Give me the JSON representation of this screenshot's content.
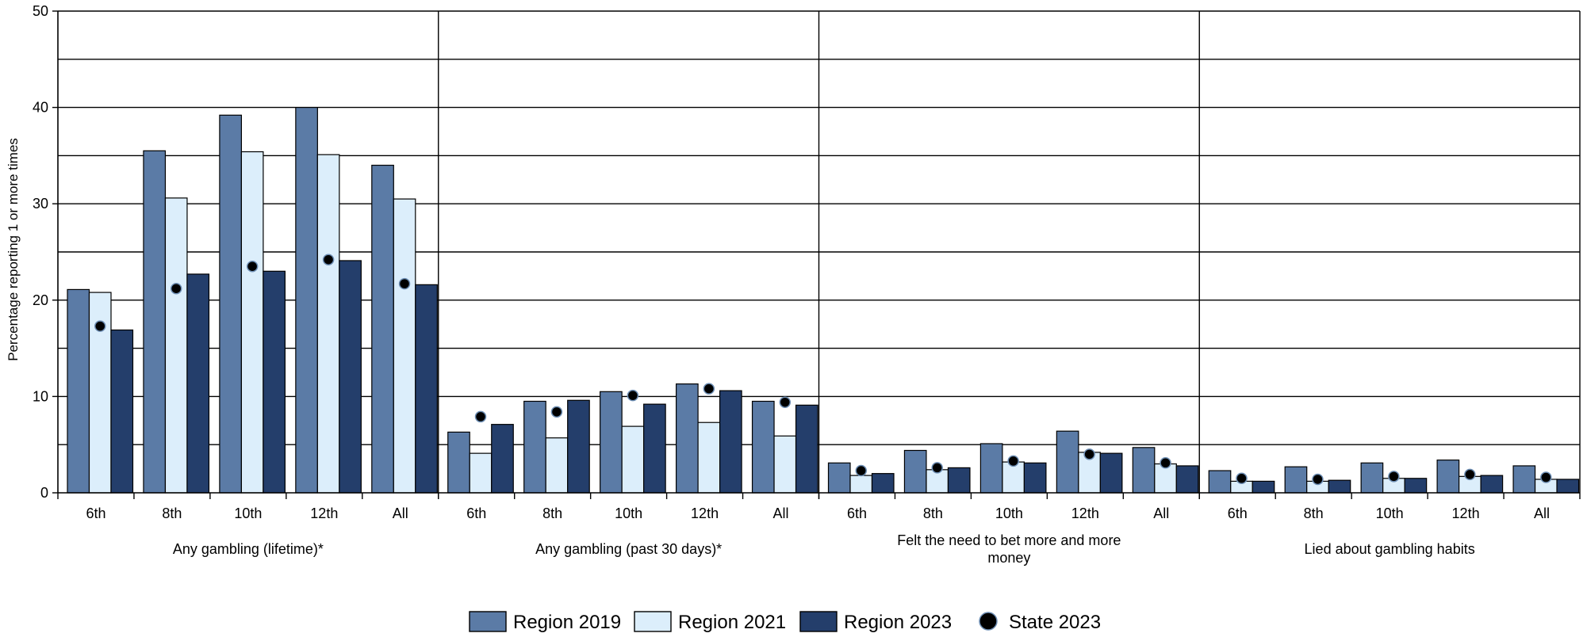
{
  "chart_data": {
    "type": "bar",
    "title": "",
    "ylabel": "Percentage reporting 1 or more times",
    "xlabel": "",
    "ylim": [
      0,
      50
    ],
    "yticks": [
      0,
      10,
      20,
      30,
      40,
      50
    ],
    "gridlines": [
      5,
      10,
      15,
      20,
      25,
      30,
      35,
      40,
      45,
      50
    ],
    "grid": true,
    "legend_position": "bottom",
    "groups": [
      {
        "name": "Any gambling (lifetime)*",
        "categories": [
          "6th",
          "8th",
          "10th",
          "12th",
          "All"
        ],
        "series": [
          {
            "name": "Region 2019",
            "values": [
              21.1,
              35.5,
              39.2,
              40.0,
              34.0
            ]
          },
          {
            "name": "Region 2021",
            "values": [
              20.8,
              30.6,
              35.4,
              35.1,
              30.5
            ]
          },
          {
            "name": "Region 2023",
            "values": [
              16.9,
              22.7,
              23.0,
              24.1,
              21.6
            ]
          }
        ],
        "state": [
          17.3,
          21.2,
          23.5,
          24.2,
          21.7
        ]
      },
      {
        "name": "Any gambling (past 30 days)*",
        "categories": [
          "6th",
          "8th",
          "10th",
          "12th",
          "All"
        ],
        "series": [
          {
            "name": "Region 2019",
            "values": [
              6.3,
              9.5,
              10.5,
              11.3,
              9.5
            ]
          },
          {
            "name": "Region 2021",
            "values": [
              4.1,
              5.7,
              6.9,
              7.3,
              5.9
            ]
          },
          {
            "name": "Region 2023",
            "values": [
              7.1,
              9.6,
              9.2,
              10.6,
              9.1
            ]
          }
        ],
        "state": [
          7.9,
          8.4,
          10.1,
          10.8,
          9.4
        ]
      },
      {
        "name": "Felt the need to bet more and more money",
        "name_lines": [
          "Felt the need to bet more and more",
          "money"
        ],
        "categories": [
          "6th",
          "8th",
          "10th",
          "12th",
          "All"
        ],
        "series": [
          {
            "name": "Region 2019",
            "values": [
              3.1,
              4.4,
              5.1,
              6.4,
              4.7
            ]
          },
          {
            "name": "Region 2021",
            "values": [
              1.8,
              2.4,
              3.2,
              4.2,
              3.0
            ]
          },
          {
            "name": "Region 2023",
            "values": [
              2.0,
              2.6,
              3.1,
              4.1,
              2.8
            ]
          }
        ],
        "state": [
          2.3,
          2.6,
          3.3,
          4.0,
          3.1
        ]
      },
      {
        "name": "Lied about gambling habits",
        "categories": [
          "6th",
          "8th",
          "10th",
          "12th",
          "All"
        ],
        "series": [
          {
            "name": "Region 2019",
            "values": [
              2.3,
              2.7,
              3.1,
              3.4,
              2.8
            ]
          },
          {
            "name": "Region 2021",
            "values": [
              1.2,
              1.2,
              1.5,
              1.7,
              1.4
            ]
          },
          {
            "name": "Region 2023",
            "values": [
              1.2,
              1.3,
              1.5,
              1.8,
              1.4
            ]
          }
        ],
        "state": [
          1.5,
          1.4,
          1.7,
          1.9,
          1.6
        ]
      }
    ],
    "legend": [
      {
        "label": "Region 2019",
        "color": "#5b7ba6",
        "kind": "bar"
      },
      {
        "label": "Region 2021",
        "color": "#dceefb",
        "kind": "bar"
      },
      {
        "label": "Region 2023",
        "color": "#243e6b",
        "kind": "bar"
      },
      {
        "label": "State 2023",
        "color": "#000000",
        "kind": "dot"
      }
    ]
  }
}
